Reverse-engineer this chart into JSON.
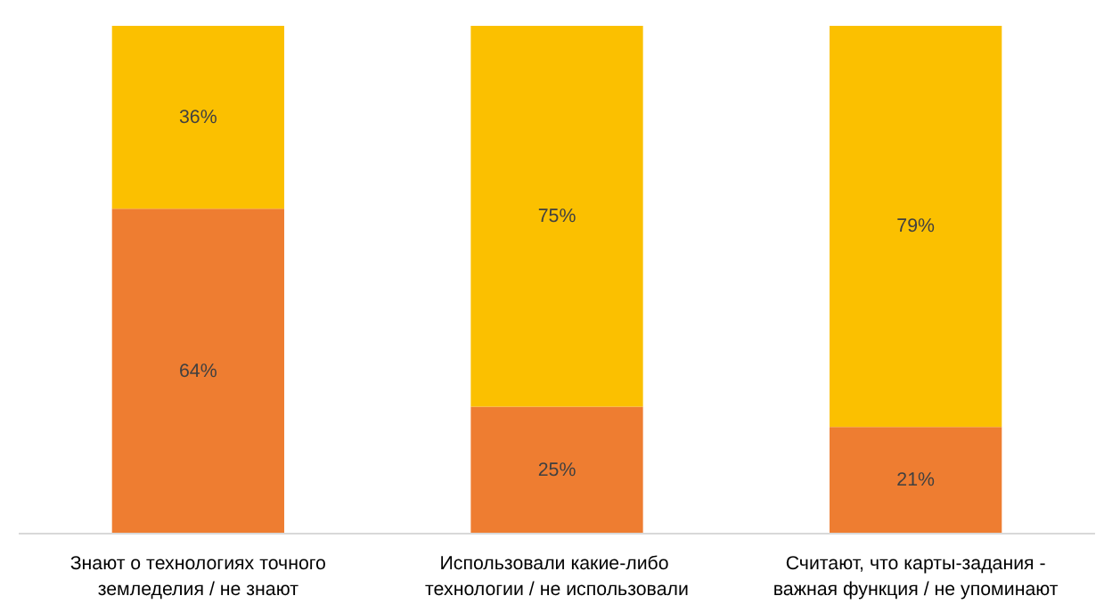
{
  "chart_data": {
    "type": "bar",
    "stacked": true,
    "categories": [
      "Знают о технологиях точного земледелия / не знают",
      "Использовали  какие-либо технологии / не использовали",
      "Считают, что карты-задания - важная функция / не упоминают"
    ],
    "series": [
      {
        "color": "#ee7d31",
        "values": [
          64,
          25,
          21
        ],
        "value_labels": [
          "64%",
          "25%",
          "21%"
        ]
      },
      {
        "color": "#fbc000",
        "values": [
          36,
          75,
          79
        ],
        "value_labels": [
          "36%",
          "75%",
          "79%"
        ]
      }
    ],
    "grid": false,
    "tick_labels": "x"
  }
}
